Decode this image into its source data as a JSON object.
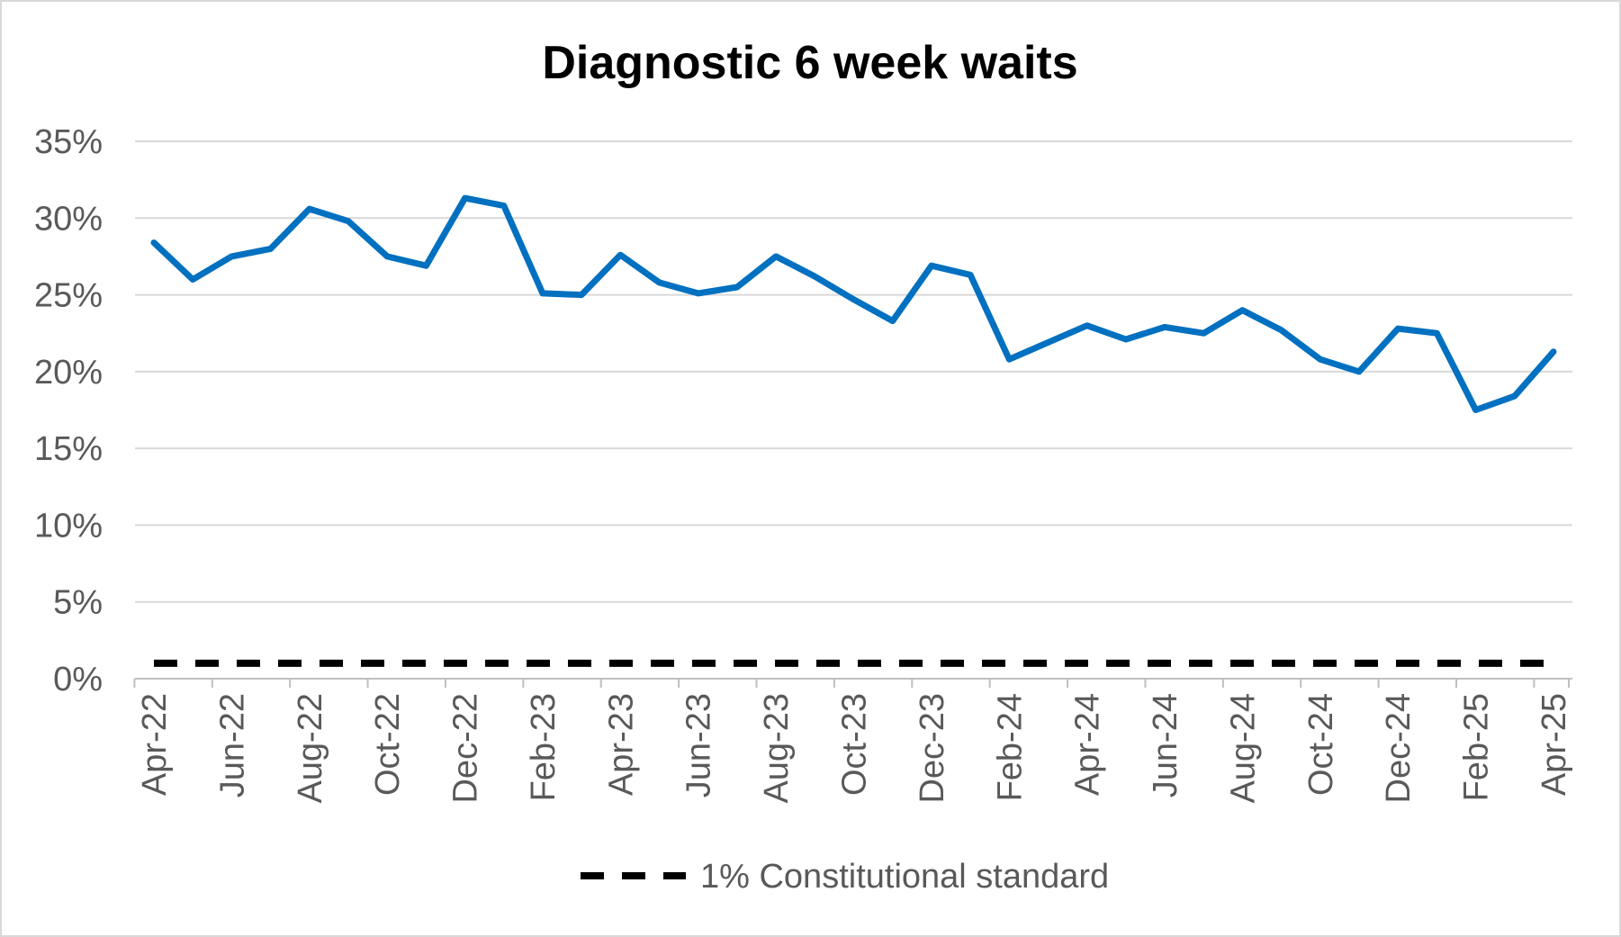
{
  "chart_data": {
    "type": "line",
    "title": "Diagnostic 6 week waits",
    "xlabel": "",
    "ylabel": "",
    "ylim": [
      0,
      35
    ],
    "y_ticks": [
      0,
      5,
      10,
      15,
      20,
      25,
      30,
      35
    ],
    "y_tick_labels": [
      "0%",
      "5%",
      "10%",
      "15%",
      "20%",
      "25%",
      "30%",
      "35%"
    ],
    "grid": "horizontal",
    "legend_position": "bottom",
    "x": [
      "Apr-22",
      "May-22",
      "Jun-22",
      "Jul-22",
      "Aug-22",
      "Sep-22",
      "Oct-22",
      "Nov-22",
      "Dec-22",
      "Jan-23",
      "Feb-23",
      "Mar-23",
      "Apr-23",
      "May-23",
      "Jun-23",
      "Jul-23",
      "Aug-23",
      "Sep-23",
      "Oct-23",
      "Nov-23",
      "Dec-23",
      "Jan-24",
      "Feb-24",
      "Mar-24",
      "Apr-24",
      "May-24",
      "Jun-24",
      "Jul-24",
      "Aug-24",
      "Sep-24",
      "Oct-24",
      "Nov-24",
      "Dec-24",
      "Jan-25",
      "Feb-25",
      "Mar-25",
      "Apr-25"
    ],
    "x_tick_labels": [
      "Apr-22",
      "Jun-22",
      "Aug-22",
      "Oct-22",
      "Dec-22",
      "Feb-23",
      "Apr-23",
      "Jun-23",
      "Aug-23",
      "Oct-23",
      "Dec-23",
      "Feb-24",
      "Apr-24",
      "Jun-24",
      "Aug-24",
      "Oct-24",
      "Dec-24",
      "Feb-25",
      "Apr-25"
    ],
    "series": [
      {
        "name": "",
        "color": "#0070c0",
        "style": "solid",
        "values": [
          28.4,
          26.0,
          27.5,
          28.0,
          30.6,
          29.8,
          27.5,
          26.9,
          31.3,
          30.8,
          25.1,
          25.0,
          27.6,
          25.8,
          25.1,
          25.5,
          27.5,
          26.2,
          24.7,
          23.3,
          26.9,
          26.3,
          20.8,
          21.9,
          23.0,
          22.1,
          22.9,
          22.5,
          24.0,
          22.7,
          20.8,
          20.0,
          22.8,
          22.5,
          17.5,
          18.4,
          21.3
        ]
      },
      {
        "name": "1% Constitutional standard",
        "color": "#000000",
        "style": "dashed",
        "values": [
          1,
          1,
          1,
          1,
          1,
          1,
          1,
          1,
          1,
          1,
          1,
          1,
          1,
          1,
          1,
          1,
          1,
          1,
          1,
          1,
          1,
          1,
          1,
          1,
          1,
          1,
          1,
          1,
          1,
          1,
          1,
          1,
          1,
          1,
          1,
          1,
          1
        ]
      }
    ]
  }
}
